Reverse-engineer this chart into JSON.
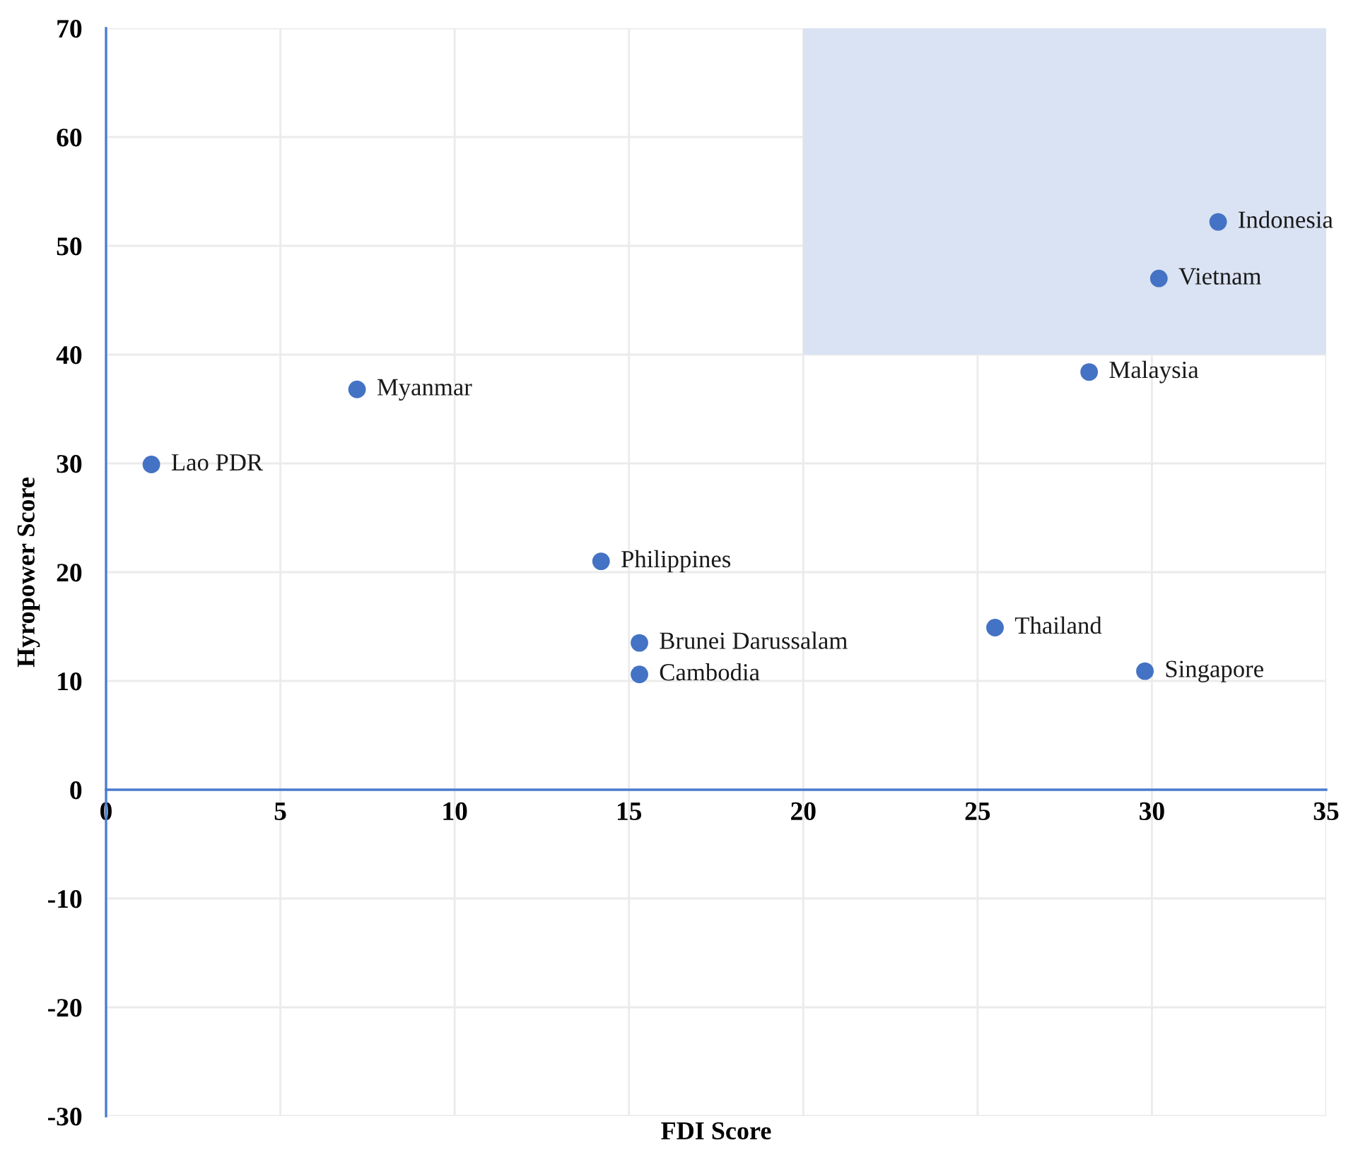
{
  "chart_data": {
    "type": "scatter",
    "xlabel": "FDI Score",
    "ylabel": "Hyropower Score",
    "xlim": [
      0,
      35
    ],
    "ylim": [
      -30,
      70
    ],
    "xticks": [
      0,
      5,
      10,
      15,
      20,
      25,
      30,
      35
    ],
    "yticks": [
      -30,
      -20,
      -10,
      0,
      10,
      20,
      30,
      40,
      50,
      60,
      70
    ],
    "grid": true,
    "series": [
      {
        "type": "line",
        "color": "#dae3f3",
        "x": [
          20,
          35
        ],
        "values": [
          null,
          null
        ],
        "lower": [
          40,
          40
        ],
        "upper": [
          70,
          70
        ]
      },
      {
        "color": "#4472c4",
        "marker": "circle",
        "x": [
          31.9,
          30.2,
          28.2,
          7.2,
          1.3,
          14.2,
          15.3,
          15.3,
          25.5,
          29.8
        ],
        "values": [
          52.2,
          47.0,
          38.4,
          36.8,
          29.9,
          21.0,
          13.5,
          10.6,
          14.9,
          10.9
        ],
        "value_labels": [
          "Indonesia",
          "Vietnam",
          "Malaysia",
          "Myanmar",
          "Lao PDR",
          "Philippines",
          "Brunei Darussalam",
          "Cambodia",
          "Thailand",
          "Singapore"
        ]
      }
    ]
  }
}
